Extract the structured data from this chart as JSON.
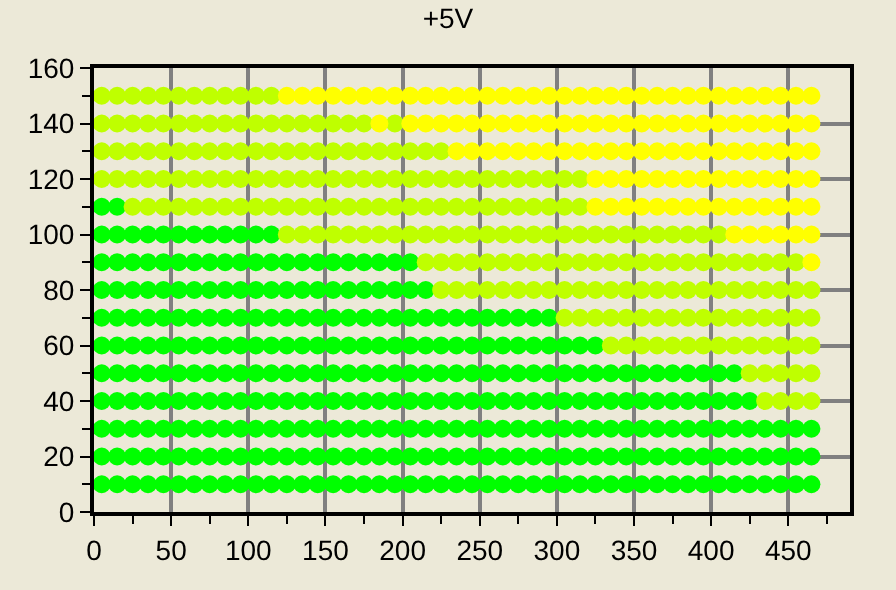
{
  "chart_data": {
    "type": "scatter",
    "title": "+5V",
    "xlim": [
      0,
      490
    ],
    "ylim": [
      0,
      160
    ],
    "xticks": [
      0,
      {
        "value": 25,
        "label": null
      },
      50,
      {
        "value": 75,
        "label": null
      },
      100,
      {
        "value": 125,
        "label": null
      },
      150,
      {
        "value": 175,
        "label": null
      },
      200,
      {
        "value": 225,
        "label": null
      },
      250,
      {
        "value": 275,
        "label": null
      },
      300,
      {
        "value": 325,
        "label": null
      },
      350,
      {
        "value": 375,
        "label": null
      },
      400,
      {
        "value": 425,
        "label": null
      },
      450,
      {
        "value": 475,
        "label": null
      }
    ],
    "yticks": [
      0,
      {
        "value": 10,
        "label": null
      },
      20,
      {
        "value": 30,
        "label": null
      },
      40,
      {
        "value": 50,
        "label": null
      },
      60,
      {
        "value": 70,
        "label": null
      },
      80,
      {
        "value": 90,
        "label": null
      },
      100,
      {
        "value": 110,
        "label": null
      },
      120,
      {
        "value": 130,
        "label": null
      },
      140,
      {
        "value": 150,
        "label": null
      },
      160
    ],
    "grid": true,
    "marker": "circle",
    "series": [
      {
        "color": "#00ff00",
        "x": [
          5,
          15,
          25,
          35,
          45,
          55,
          65,
          75,
          85,
          95,
          105,
          115,
          125,
          135,
          145,
          155,
          165,
          175,
          185,
          195,
          205,
          215,
          225,
          235,
          245,
          255,
          265,
          275,
          285,
          295,
          305,
          315,
          325,
          335,
          345,
          355,
          365,
          375,
          385,
          395,
          405,
          415,
          425,
          435,
          445,
          455,
          465
        ],
        "values": [
          10,
          10,
          10,
          10,
          10,
          10,
          10,
          10,
          10,
          10,
          10,
          10,
          10,
          10,
          10,
          10,
          10,
          10,
          10,
          10,
          10,
          10,
          10,
          10,
          10,
          10,
          10,
          10,
          10,
          10,
          10,
          10,
          10,
          10,
          10,
          10,
          10,
          10,
          10,
          10,
          10,
          10,
          10,
          10,
          10,
          10,
          10
        ]
      },
      {
        "color": "#00ff00",
        "x": [
          5,
          15,
          25,
          35,
          45,
          55,
          65,
          75,
          85,
          95,
          105,
          115,
          125,
          135,
          145,
          155,
          165,
          175,
          185,
          195,
          205,
          215,
          225,
          235,
          245,
          255,
          265,
          275,
          285,
          295,
          305,
          315,
          325,
          335,
          345,
          355,
          365,
          375,
          385,
          395,
          405,
          415,
          425,
          435,
          445,
          455,
          465
        ],
        "values": [
          20,
          20,
          20,
          20,
          20,
          20,
          20,
          20,
          20,
          20,
          20,
          20,
          20,
          20,
          20,
          20,
          20,
          20,
          20,
          20,
          20,
          20,
          20,
          20,
          20,
          20,
          20,
          20,
          20,
          20,
          20,
          20,
          20,
          20,
          20,
          20,
          20,
          20,
          20,
          20,
          20,
          20,
          20,
          20,
          20,
          20,
          20
        ]
      },
      {
        "color": "#00ff00",
        "x": [
          5,
          15,
          25,
          35,
          45,
          55,
          65,
          75,
          85,
          95,
          105,
          115,
          125,
          135,
          145,
          155,
          165,
          175,
          185,
          195,
          205,
          215,
          225,
          235,
          245,
          255,
          265,
          275,
          285,
          295,
          305,
          315,
          325,
          335,
          345,
          355,
          365,
          375,
          385,
          395,
          405,
          415,
          425,
          435,
          445,
          455,
          465
        ],
        "values": [
          30,
          30,
          30,
          30,
          30,
          30,
          30,
          30,
          30,
          30,
          30,
          30,
          30,
          30,
          30,
          30,
          30,
          30,
          30,
          30,
          30,
          30,
          30,
          30,
          30,
          30,
          30,
          30,
          30,
          30,
          30,
          30,
          30,
          30,
          30,
          30,
          30,
          30,
          30,
          30,
          30,
          30,
          30,
          30,
          30,
          30,
          30
        ]
      },
      {
        "color": "#00ff00",
        "x": [
          5,
          15,
          25,
          35,
          45,
          55,
          65,
          75,
          85,
          95,
          105,
          115,
          125,
          135,
          145,
          155,
          165,
          175,
          185,
          195,
          205,
          215,
          225,
          235,
          245,
          255,
          265,
          275,
          285,
          295,
          305,
          315,
          325,
          335,
          345,
          355,
          365,
          375,
          385,
          395,
          405,
          415,
          425
        ],
        "values": [
          40,
          40,
          40,
          40,
          40,
          40,
          40,
          40,
          40,
          40,
          40,
          40,
          40,
          40,
          40,
          40,
          40,
          40,
          40,
          40,
          40,
          40,
          40,
          40,
          40,
          40,
          40,
          40,
          40,
          40,
          40,
          40,
          40,
          40,
          40,
          40,
          40,
          40,
          40,
          40,
          40,
          40,
          40
        ]
      },
      {
        "color": "#bfff00",
        "x": [
          435,
          445,
          455,
          465
        ],
        "values": [
          40,
          40,
          40,
          40
        ]
      },
      {
        "color": "#00ff00",
        "x": [
          5,
          15,
          25,
          35,
          45,
          55,
          65,
          75,
          85,
          95,
          105,
          115,
          125,
          135,
          145,
          155,
          165,
          175,
          185,
          195,
          205,
          215,
          225,
          235,
          245,
          255,
          265,
          275,
          285,
          295,
          305,
          315,
          325,
          335,
          345,
          355,
          365,
          375,
          385,
          395,
          405,
          415
        ],
        "values": [
          50,
          50,
          50,
          50,
          50,
          50,
          50,
          50,
          50,
          50,
          50,
          50,
          50,
          50,
          50,
          50,
          50,
          50,
          50,
          50,
          50,
          50,
          50,
          50,
          50,
          50,
          50,
          50,
          50,
          50,
          50,
          50,
          50,
          50,
          50,
          50,
          50,
          50,
          50,
          50,
          50,
          50
        ]
      },
      {
        "color": "#bfff00",
        "x": [
          425,
          435,
          445,
          455,
          465
        ],
        "values": [
          50,
          50,
          50,
          50,
          50
        ]
      },
      {
        "color": "#00ff00",
        "x": [
          5,
          15,
          25,
          35,
          45,
          55,
          65,
          75,
          85,
          95,
          105,
          115,
          125,
          135,
          145,
          155,
          165,
          175,
          185,
          195,
          205,
          215,
          225,
          235,
          245,
          255,
          265,
          275,
          285,
          295,
          305,
          315,
          325
        ],
        "values": [
          60,
          60,
          60,
          60,
          60,
          60,
          60,
          60,
          60,
          60,
          60,
          60,
          60,
          60,
          60,
          60,
          60,
          60,
          60,
          60,
          60,
          60,
          60,
          60,
          60,
          60,
          60,
          60,
          60,
          60,
          60,
          60,
          60
        ]
      },
      {
        "color": "#bfff00",
        "x": [
          335,
          345,
          355,
          365,
          375,
          385,
          395,
          405,
          415,
          425,
          435,
          445,
          455,
          465
        ],
        "values": [
          60,
          60,
          60,
          60,
          60,
          60,
          60,
          60,
          60,
          60,
          60,
          60,
          60,
          60
        ]
      },
      {
        "color": "#00ff00",
        "x": [
          5,
          15,
          25,
          35,
          45,
          55,
          65,
          75,
          85,
          95,
          105,
          115,
          125,
          135,
          145,
          155,
          165,
          175,
          185,
          195,
          205,
          215,
          225,
          235,
          245,
          255,
          265,
          275,
          285,
          295
        ],
        "values": [
          70,
          70,
          70,
          70,
          70,
          70,
          70,
          70,
          70,
          70,
          70,
          70,
          70,
          70,
          70,
          70,
          70,
          70,
          70,
          70,
          70,
          70,
          70,
          70,
          70,
          70,
          70,
          70,
          70,
          70
        ]
      },
      {
        "color": "#bfff00",
        "x": [
          305,
          315,
          325,
          335,
          345,
          355,
          365,
          375,
          385,
          395,
          405,
          415,
          425,
          435,
          445,
          455,
          465
        ],
        "values": [
          70,
          70,
          70,
          70,
          70,
          70,
          70,
          70,
          70,
          70,
          70,
          70,
          70,
          70,
          70,
          70,
          70
        ]
      },
      {
        "color": "#00ff00",
        "x": [
          5,
          15,
          25,
          35,
          45,
          55,
          65,
          75,
          85,
          95,
          105,
          115,
          125,
          135,
          145,
          155,
          165,
          175,
          185,
          195,
          205,
          215
        ],
        "values": [
          80,
          80,
          80,
          80,
          80,
          80,
          80,
          80,
          80,
          80,
          80,
          80,
          80,
          80,
          80,
          80,
          80,
          80,
          80,
          80,
          80,
          80
        ]
      },
      {
        "color": "#bfff00",
        "x": [
          225,
          235,
          245,
          255,
          265,
          275,
          285,
          295,
          305,
          315,
          325,
          335,
          345,
          355,
          365,
          375,
          385,
          395,
          405,
          415,
          425,
          435,
          445,
          455,
          465
        ],
        "values": [
          80,
          80,
          80,
          80,
          80,
          80,
          80,
          80,
          80,
          80,
          80,
          80,
          80,
          80,
          80,
          80,
          80,
          80,
          80,
          80,
          80,
          80,
          80,
          80,
          80
        ]
      },
      {
        "color": "#00ff00",
        "x": [
          5,
          15,
          25,
          35,
          45,
          55,
          65,
          75,
          85,
          95,
          105,
          115,
          125,
          135,
          145,
          155,
          165,
          175,
          185,
          195,
          205
        ],
        "values": [
          90,
          90,
          90,
          90,
          90,
          90,
          90,
          90,
          90,
          90,
          90,
          90,
          90,
          90,
          90,
          90,
          90,
          90,
          90,
          90,
          90
        ]
      },
      {
        "color": "#bfff00",
        "x": [
          215,
          225,
          235,
          245,
          255,
          265,
          275,
          285,
          295,
          305,
          315,
          325,
          335,
          345,
          355,
          365,
          375,
          385,
          395,
          405,
          415,
          425,
          435,
          445,
          455
        ],
        "values": [
          90,
          90,
          90,
          90,
          90,
          90,
          90,
          90,
          90,
          90,
          90,
          90,
          90,
          90,
          90,
          90,
          90,
          90,
          90,
          90,
          90,
          90,
          90,
          90,
          90
        ]
      },
      {
        "color": "#ffff00",
        "x": [
          465
        ],
        "values": [
          90
        ]
      },
      {
        "color": "#00ff00",
        "x": [
          5,
          15,
          25,
          35,
          45,
          55,
          65,
          75,
          85,
          95,
          105,
          115
        ],
        "values": [
          100,
          100,
          100,
          100,
          100,
          100,
          100,
          100,
          100,
          100,
          100,
          100
        ]
      },
      {
        "color": "#bfff00",
        "x": [
          125,
          135,
          145,
          155,
          165,
          175,
          185,
          195,
          205,
          215,
          225,
          235,
          245,
          255,
          265,
          275,
          285,
          295,
          305,
          315,
          325,
          335,
          345,
          355,
          365,
          375,
          385,
          395,
          405
        ],
        "values": [
          100,
          100,
          100,
          100,
          100,
          100,
          100,
          100,
          100,
          100,
          100,
          100,
          100,
          100,
          100,
          100,
          100,
          100,
          100,
          100,
          100,
          100,
          100,
          100,
          100,
          100,
          100,
          100,
          100
        ]
      },
      {
        "color": "#ffff00",
        "x": [
          415,
          425,
          435,
          445,
          455,
          465
        ],
        "values": [
          100,
          100,
          100,
          100,
          100,
          100
        ]
      },
      {
        "color": "#00ff00",
        "x": [
          5,
          15
        ],
        "values": [
          110,
          110
        ]
      },
      {
        "color": "#bfff00",
        "x": [
          25,
          35,
          45,
          55,
          65,
          75,
          85,
          95,
          105,
          115,
          125,
          135,
          145,
          155,
          165,
          175,
          185,
          195,
          205,
          215,
          225,
          235,
          245,
          255,
          265,
          275,
          285,
          295,
          305,
          315
        ],
        "values": [
          110,
          110,
          110,
          110,
          110,
          110,
          110,
          110,
          110,
          110,
          110,
          110,
          110,
          110,
          110,
          110,
          110,
          110,
          110,
          110,
          110,
          110,
          110,
          110,
          110,
          110,
          110,
          110,
          110,
          110
        ]
      },
      {
        "color": "#ffff00",
        "x": [
          325,
          335,
          345,
          355,
          365,
          375,
          385,
          395,
          405,
          415,
          425,
          435,
          445,
          455,
          465
        ],
        "values": [
          110,
          110,
          110,
          110,
          110,
          110,
          110,
          110,
          110,
          110,
          110,
          110,
          110,
          110,
          110
        ]
      },
      {
        "color": "#bfff00",
        "x": [
          5,
          15,
          25,
          35,
          45,
          55,
          65,
          75,
          85,
          95,
          105,
          115,
          125,
          135,
          145,
          155,
          165,
          175,
          185,
          195,
          205,
          215,
          225,
          235,
          245,
          255,
          265,
          275,
          285,
          295,
          305,
          315
        ],
        "values": [
          120,
          120,
          120,
          120,
          120,
          120,
          120,
          120,
          120,
          120,
          120,
          120,
          120,
          120,
          120,
          120,
          120,
          120,
          120,
          120,
          120,
          120,
          120,
          120,
          120,
          120,
          120,
          120,
          120,
          120,
          120,
          120
        ]
      },
      {
        "color": "#ffff00",
        "x": [
          325,
          335,
          345,
          355,
          365,
          375,
          385,
          395,
          405,
          415,
          425,
          435,
          445,
          455,
          465
        ],
        "values": [
          120,
          120,
          120,
          120,
          120,
          120,
          120,
          120,
          120,
          120,
          120,
          120,
          120,
          120,
          120
        ]
      },
      {
        "color": "#bfff00",
        "x": [
          5,
          15,
          25,
          35,
          45,
          55,
          65,
          75,
          85,
          95,
          105,
          115,
          125,
          135,
          145,
          155,
          165,
          175,
          185,
          195,
          205,
          215,
          225
        ],
        "values": [
          130,
          130,
          130,
          130,
          130,
          130,
          130,
          130,
          130,
          130,
          130,
          130,
          130,
          130,
          130,
          130,
          130,
          130,
          130,
          130,
          130,
          130,
          130
        ]
      },
      {
        "color": "#ffff00",
        "x": [
          235,
          245,
          255,
          265,
          275,
          285,
          295,
          305,
          315,
          325,
          335,
          345,
          355,
          365,
          375,
          385,
          395,
          405,
          415,
          425,
          435,
          445,
          455,
          465
        ],
        "values": [
          130,
          130,
          130,
          130,
          130,
          130,
          130,
          130,
          130,
          130,
          130,
          130,
          130,
          130,
          130,
          130,
          130,
          130,
          130,
          130,
          130,
          130,
          130,
          130
        ]
      },
      {
        "color": "#bfff00",
        "x": [
          5,
          15,
          25,
          35,
          45,
          55,
          65,
          75,
          85,
          95,
          105,
          115,
          125,
          135,
          145,
          155,
          165,
          175,
          195
        ],
        "values": [
          140,
          140,
          140,
          140,
          140,
          140,
          140,
          140,
          140,
          140,
          140,
          140,
          140,
          140,
          140,
          140,
          140,
          140,
          140
        ]
      },
      {
        "color": "#ffff00",
        "x": [
          185,
          205,
          215,
          225,
          235,
          245,
          255,
          265,
          275,
          285,
          295,
          305,
          315,
          325,
          335,
          345,
          355,
          365,
          375,
          385,
          395,
          405,
          415,
          425,
          435,
          445,
          455,
          465
        ],
        "values": [
          140,
          140,
          140,
          140,
          140,
          140,
          140,
          140,
          140,
          140,
          140,
          140,
          140,
          140,
          140,
          140,
          140,
          140,
          140,
          140,
          140,
          140,
          140,
          140,
          140,
          140,
          140,
          140
        ]
      },
      {
        "color": "#bfff00",
        "x": [
          5,
          15,
          25,
          35,
          45,
          55,
          65,
          75,
          85,
          95,
          105,
          115
        ],
        "values": [
          150,
          150,
          150,
          150,
          150,
          150,
          150,
          150,
          150,
          150,
          150,
          150
        ]
      },
      {
        "color": "#ffff00",
        "x": [
          125,
          135,
          145,
          155,
          165,
          175,
          185,
          195,
          205,
          215,
          225,
          235,
          245,
          255,
          265,
          275,
          285,
          295,
          305,
          315,
          325,
          335,
          345,
          355,
          365,
          375,
          385,
          395,
          405,
          415,
          425,
          435,
          445,
          455,
          465
        ],
        "values": [
          150,
          150,
          150,
          150,
          150,
          150,
          150,
          150,
          150,
          150,
          150,
          150,
          150,
          150,
          150,
          150,
          150,
          150,
          150,
          150,
          150,
          150,
          150,
          150,
          150,
          150,
          150,
          150,
          150,
          150,
          150,
          150,
          150,
          150,
          150
        ]
      }
    ]
  }
}
